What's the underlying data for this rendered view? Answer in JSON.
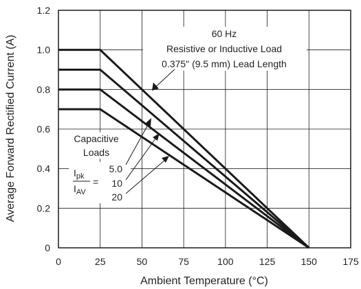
{
  "chart_data": {
    "type": "line",
    "title": "",
    "xlabel": "Ambient Temperature (°C)",
    "ylabel": "Average Forward Rectified Current (A)",
    "xlim": [
      0,
      175
    ],
    "ylim": [
      0,
      1.2
    ],
    "x_ticks": [
      0,
      25,
      50,
      75,
      100,
      125,
      150,
      175
    ],
    "y_ticks": [
      0,
      0.2,
      0.4,
      0.6,
      0.8,
      1.0,
      1.2
    ],
    "x_tick_labels": [
      "0",
      "25",
      "50",
      "75",
      "100",
      "125",
      "150",
      "175"
    ],
    "y_tick_labels": [
      "0",
      "0.2",
      "0.4",
      "0.6",
      "0.8",
      "1.0",
      "1.2"
    ],
    "grid": true,
    "series": [
      {
        "x": [
          0,
          25,
          150
        ],
        "y": [
          1.0,
          1.0,
          0
        ]
      },
      {
        "x": [
          0,
          25,
          150
        ],
        "y": [
          0.9,
          0.9,
          0
        ]
      },
      {
        "x": [
          0,
          25,
          150
        ],
        "y": [
          0.8,
          0.8,
          0
        ]
      },
      {
        "x": [
          0,
          25,
          150
        ],
        "y": [
          0.7,
          0.7,
          0
        ]
      }
    ],
    "annotations": {
      "resistive_line1": "60 Hz",
      "resistive_line2": "Resistive or Inductive Load",
      "resistive_line3": "0.375\" (9.5 mm) Lead Length",
      "capacitive_line1": "Capacitive",
      "capacitive_line2": "Loads",
      "ratio_numerator": "I",
      "ratio_numerator_sub": "pk",
      "ratio_denominator": "I",
      "ratio_denominator_sub": "AV",
      "ratio_equals": "=",
      "ratio_values": [
        "5.0",
        "10",
        "20"
      ]
    },
    "colors": {
      "line": "#1a1a1a",
      "grid": "#1a1a1a",
      "text": "#222222"
    }
  }
}
